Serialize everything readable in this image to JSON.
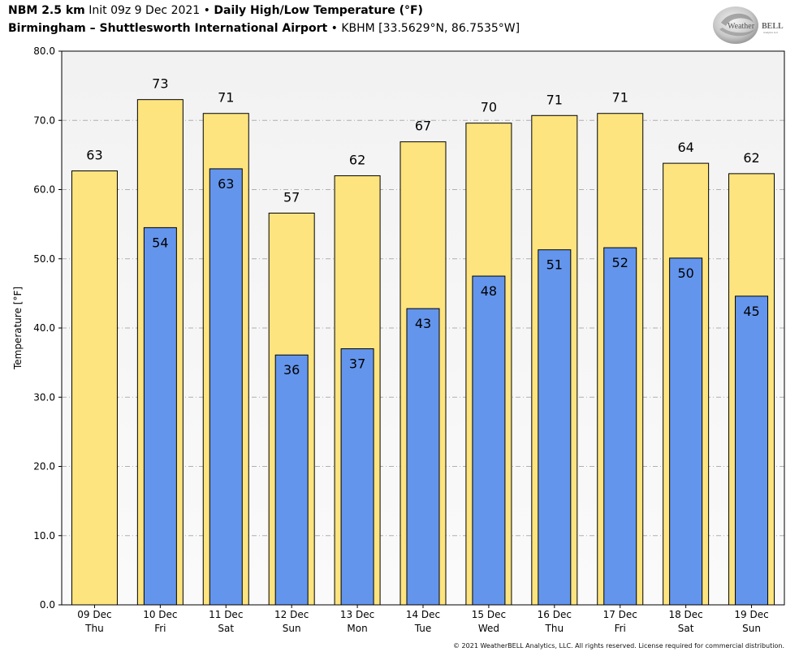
{
  "header": {
    "line1_model": "NBM 2.5 km",
    "line1_init": " Init 09z 9 Dec 2021",
    "line1_sep": " • ",
    "line1_title": "Daily High/Low Temperature (°F)",
    "line2_station": "Birmingham – Shuttlesworth International Airport",
    "line2_sep": " • ",
    "line2_coords": "KBHM [33.5629°N, 86.7535°W]"
  },
  "logo": {
    "text_a": "Weather",
    "text_b": "BELL",
    "sub": "Analytics LLC"
  },
  "copyright": "© 2021 WeatherBELL Analytics, LLC. All rights reserved. License required for commercial distribution.",
  "colors": {
    "high": "#fde47f",
    "low": "#6495ed",
    "plot_bg_top": "#f2f2f2",
    "plot_bg_bottom": "#fafafa",
    "grid": "#b0b0b0"
  },
  "chart_data": {
    "type": "bar",
    "ylabel": "Temperature [°F]",
    "ylim": [
      0,
      80
    ],
    "yticks": [
      "0.0",
      "10.0",
      "20.0",
      "30.0",
      "40.0",
      "50.0",
      "60.0",
      "70.0",
      "80.0"
    ],
    "grid": true,
    "categories": [
      [
        "09 Dec",
        "Thu"
      ],
      [
        "10 Dec",
        "Fri"
      ],
      [
        "11 Dec",
        "Sat"
      ],
      [
        "12 Dec",
        "Sun"
      ],
      [
        "13 Dec",
        "Mon"
      ],
      [
        "14 Dec",
        "Tue"
      ],
      [
        "15 Dec",
        "Wed"
      ],
      [
        "16 Dec",
        "Thu"
      ],
      [
        "17 Dec",
        "Fri"
      ],
      [
        "18 Dec",
        "Sat"
      ],
      [
        "19 Dec",
        "Sun"
      ]
    ],
    "series": [
      {
        "key": "high",
        "values": [
          62.7,
          73.0,
          71.0,
          56.6,
          62.0,
          66.9,
          69.6,
          70.7,
          71.0,
          63.8,
          62.3
        ],
        "labels": [
          "63",
          "73",
          "71",
          "57",
          "62",
          "67",
          "70",
          "71",
          "71",
          "64",
          "62"
        ]
      },
      {
        "key": "low",
        "values": [
          null,
          54.5,
          63.0,
          36.1,
          37.0,
          42.8,
          47.5,
          51.3,
          51.6,
          50.1,
          44.6
        ],
        "labels": [
          "",
          "54",
          "63",
          "36",
          "37",
          "43",
          "48",
          "51",
          "52",
          "50",
          "45"
        ]
      }
    ]
  }
}
